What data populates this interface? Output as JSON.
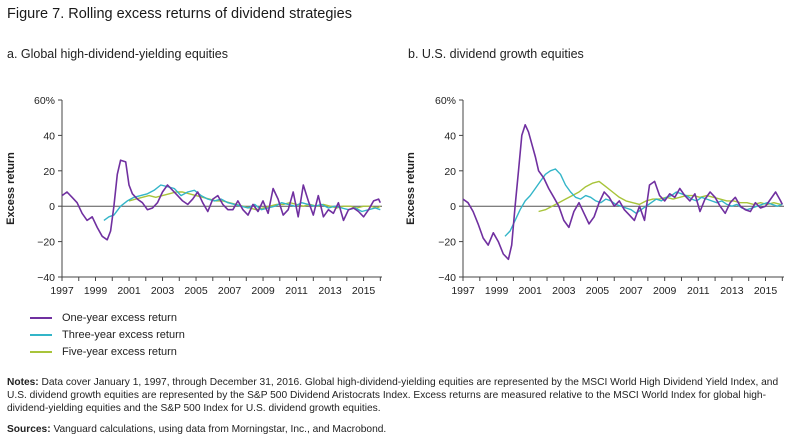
{
  "title": "Figure 7. Rolling excess returns of dividend strategies",
  "colors": {
    "one_year": "#7030a0",
    "three_year": "#33b5c8",
    "five_year": "#a8c43a",
    "zero_line": "#555555",
    "axis": "#444444"
  },
  "legend": [
    {
      "label": "One-year excess return",
      "color": "#7030a0"
    },
    {
      "label": "Three-year excess return",
      "color": "#33b5c8"
    },
    {
      "label": "Five-year excess return",
      "color": "#a8c43a"
    }
  ],
  "notes": {
    "label": "Notes:",
    "text": " Data cover January 1, 1997, through December 31, 2016. Global high-dividend-yielding equities are represented by the MSCI World High Dividend Yield Index, and U.S. dividend growth equities are represented by the S&P 500 Dividend Aristocrats Index. Excess returns are measured relative to the MSCI World Index for global high-dividend-yielding equities and the S&P 500 Index for U.S. dividend growth equities."
  },
  "sources": {
    "label": "Sources:",
    "text": " Vanguard calculations, using data from Morningstar, Inc., and Macrobond."
  },
  "chart_data": [
    {
      "type": "line",
      "title": "a. Global high-dividend-yielding equities",
      "xlabel": "",
      "ylabel": "Excess return",
      "xlim": [
        1997,
        2016.1
      ],
      "ylim": [
        -40,
        60
      ],
      "yticks": [
        "60%",
        "40",
        "20",
        "0",
        "−20",
        "−40"
      ],
      "ytick_values": [
        60,
        40,
        20,
        0,
        -20,
        -40
      ],
      "xticks": [
        "1997",
        "1999",
        "2001",
        "2003",
        "2005",
        "2007",
        "2009",
        "2011",
        "2013",
        "2015"
      ],
      "xtick_values": [
        1997,
        1999,
        2001,
        2003,
        2005,
        2007,
        2009,
        2011,
        2013,
        2015
      ],
      "series": [
        {
          "name": "One-year excess return",
          "key": "one_year",
          "x": [
            1997,
            1997.3,
            1997.6,
            1997.9,
            1998.2,
            1998.5,
            1998.8,
            1999.1,
            1999.4,
            1999.7,
            1999.9,
            2000.1,
            2000.3,
            2000.5,
            2000.8,
            2001.0,
            2001.2,
            2001.5,
            2001.8,
            2002.1,
            2002.4,
            2002.7,
            2003.0,
            2003.3,
            2003.6,
            2003.9,
            2004.2,
            2004.5,
            2004.8,
            2005.1,
            2005.4,
            2005.7,
            2006.0,
            2006.3,
            2006.6,
            2006.9,
            2007.2,
            2007.5,
            2007.8,
            2008.1,
            2008.4,
            2008.7,
            2009.0,
            2009.3,
            2009.6,
            2009.9,
            2010.2,
            2010.5,
            2010.8,
            2011.1,
            2011.4,
            2011.7,
            2012.0,
            2012.3,
            2012.6,
            2012.9,
            2013.2,
            2013.5,
            2013.8,
            2014.1,
            2014.4,
            2014.7,
            2015.0,
            2015.3,
            2015.6,
            2015.9,
            2016.0
          ],
          "values": [
            6,
            8,
            5,
            2,
            -4,
            -8,
            -6,
            -12,
            -17,
            -19,
            -14,
            0,
            18,
            26,
            25,
            12,
            7,
            4,
            2,
            -2,
            -1,
            2,
            8,
            12,
            9,
            6,
            3,
            1,
            4,
            8,
            2,
            -3,
            4,
            6,
            1,
            -2,
            -2,
            3,
            -2,
            -5,
            1,
            -3,
            3,
            -4,
            10,
            4,
            -5,
            -2,
            8,
            -6,
            12,
            3,
            -5,
            6,
            -6,
            -2,
            -4,
            2,
            -8,
            -2,
            -1,
            -3,
            -6,
            -2,
            3,
            4,
            2
          ]
        },
        {
          "name": "Three-year excess return",
          "key": "three_year",
          "x": [
            1999.5,
            1999.8,
            2000.1,
            2000.5,
            2000.9,
            2001.3,
            2001.7,
            2002.1,
            2002.5,
            2002.9,
            2003.3,
            2003.7,
            2004.1,
            2004.5,
            2004.9,
            2005.3,
            2005.7,
            2006.1,
            2006.5,
            2006.9,
            2007.3,
            2007.7,
            2008.1,
            2008.5,
            2008.9,
            2009.3,
            2009.7,
            2010.1,
            2010.5,
            2010.9,
            2011.3,
            2011.7,
            2012.1,
            2012.5,
            2012.9,
            2013.3,
            2013.7,
            2014.1,
            2014.5,
            2014.9,
            2015.3,
            2015.7,
            2016.0
          ],
          "values": [
            -8,
            -6,
            -5,
            0,
            3,
            5,
            6,
            7,
            9,
            12,
            11,
            10,
            6,
            8,
            9,
            6,
            4,
            3,
            4,
            2,
            1,
            0,
            -1,
            1,
            -2,
            -1,
            0,
            2,
            1,
            0,
            2,
            1,
            0,
            1,
            -1,
            0,
            -1,
            -2,
            -1,
            -3,
            -2,
            -1,
            -2
          ]
        },
        {
          "name": "Five-year excess return",
          "key": "five_year",
          "x": [
            2001.0,
            2001.4,
            2001.8,
            2002.2,
            2002.6,
            2003.0,
            2003.4,
            2003.8,
            2004.2,
            2004.6,
            2005.0,
            2005.4,
            2005.8,
            2006.2,
            2006.6,
            2007.0,
            2007.4,
            2007.8,
            2008.2,
            2008.6,
            2009.0,
            2009.4,
            2009.8,
            2010.2,
            2010.6,
            2011.0,
            2011.4,
            2011.8,
            2012.2,
            2012.6,
            2013.0,
            2013.4,
            2013.8,
            2014.2,
            2014.6,
            2015.0,
            2015.4,
            2015.8,
            2016.0
          ],
          "values": [
            3,
            4,
            5,
            6,
            5,
            6,
            7,
            8,
            8,
            7,
            6,
            5,
            4,
            3,
            3,
            2,
            1,
            0,
            -1,
            -2,
            -1,
            0,
            1,
            1,
            2,
            1,
            0,
            1,
            0,
            1,
            0,
            -1,
            0,
            0,
            -1,
            0,
            0,
            -1,
            0
          ]
        }
      ]
    },
    {
      "type": "line",
      "title": "b. U.S. dividend growth equities",
      "xlabel": "",
      "ylabel": "Excess return",
      "xlim": [
        1997,
        2016.1
      ],
      "ylim": [
        -40,
        60
      ],
      "yticks": [
        "60%",
        "40",
        "20",
        "0",
        "−20",
        "−40"
      ],
      "ytick_values": [
        60,
        40,
        20,
        0,
        -20,
        -40
      ],
      "xticks": [
        "1997",
        "1999",
        "2001",
        "2003",
        "2005",
        "2007",
        "2009",
        "2011",
        "2013",
        "2015"
      ],
      "xtick_values": [
        1997,
        1999,
        2001,
        2003,
        2005,
        2007,
        2009,
        2011,
        2013,
        2015
      ],
      "series": [
        {
          "name": "One-year excess return",
          "key": "one_year",
          "x": [
            1997,
            1997.3,
            1997.6,
            1997.9,
            1998.2,
            1998.5,
            1998.8,
            1999.1,
            1999.4,
            1999.7,
            1999.9,
            2000.1,
            2000.3,
            2000.5,
            2000.7,
            2000.9,
            2001.1,
            2001.3,
            2001.5,
            2001.8,
            2002.1,
            2002.4,
            2002.7,
            2003.0,
            2003.3,
            2003.6,
            2003.9,
            2004.2,
            2004.5,
            2004.8,
            2005.1,
            2005.4,
            2005.7,
            2006.0,
            2006.3,
            2006.6,
            2006.9,
            2007.2,
            2007.5,
            2007.8,
            2008.1,
            2008.4,
            2008.7,
            2009.0,
            2009.3,
            2009.6,
            2009.9,
            2010.2,
            2010.5,
            2010.8,
            2011.1,
            2011.4,
            2011.7,
            2012.0,
            2012.3,
            2012.6,
            2012.9,
            2013.2,
            2013.5,
            2013.8,
            2014.1,
            2014.4,
            2014.7,
            2015.0,
            2015.3,
            2015.6,
            2015.9,
            2016.0
          ],
          "values": [
            4,
            2,
            -3,
            -10,
            -18,
            -22,
            -15,
            -20,
            -27,
            -30,
            -22,
            0,
            20,
            40,
            46,
            42,
            35,
            28,
            20,
            16,
            10,
            5,
            0,
            -8,
            -12,
            -3,
            2,
            -4,
            -10,
            -6,
            2,
            8,
            5,
            0,
            3,
            -2,
            -5,
            -8,
            0,
            -8,
            12,
            14,
            6,
            3,
            7,
            5,
            10,
            6,
            3,
            7,
            -3,
            4,
            8,
            5,
            0,
            -4,
            2,
            5,
            0,
            -2,
            -3,
            2,
            -1,
            0,
            4,
            8,
            3,
            1
          ]
        },
        {
          "name": "Three-year excess return",
          "key": "three_year",
          "x": [
            1999.5,
            1999.8,
            2000.1,
            2000.4,
            2000.7,
            2001.0,
            2001.3,
            2001.6,
            2001.9,
            2002.2,
            2002.5,
            2002.8,
            2003.1,
            2003.4,
            2003.7,
            2004.0,
            2004.3,
            2004.6,
            2004.9,
            2005.2,
            2005.5,
            2005.8,
            2006.1,
            2006.4,
            2006.7,
            2007.0,
            2007.3,
            2007.6,
            2007.9,
            2008.2,
            2008.5,
            2008.8,
            2009.1,
            2009.4,
            2009.7,
            2010.0,
            2010.3,
            2010.6,
            2010.9,
            2011.2,
            2011.5,
            2011.8,
            2012.1,
            2012.4,
            2012.7,
            2013.0,
            2013.3,
            2013.6,
            2013.9,
            2014.2,
            2014.5,
            2014.8,
            2015.1,
            2015.4,
            2015.7,
            2016.0
          ],
          "values": [
            -17,
            -14,
            -8,
            -2,
            3,
            6,
            10,
            14,
            18,
            20,
            21,
            18,
            12,
            8,
            5,
            4,
            6,
            5,
            3,
            2,
            4,
            3,
            1,
            0,
            -1,
            -2,
            -4,
            -2,
            0,
            2,
            4,
            3,
            5,
            6,
            8,
            7,
            6,
            4,
            3,
            5,
            4,
            3,
            2,
            3,
            1,
            0,
            1,
            -1,
            -2,
            -1,
            0,
            1,
            2,
            1,
            0,
            1
          ]
        },
        {
          "name": "Five-year excess return",
          "key": "five_year",
          "x": [
            2001.5,
            2001.9,
            2002.3,
            2002.7,
            2003.1,
            2003.5,
            2003.9,
            2004.3,
            2004.7,
            2005.1,
            2005.5,
            2005.9,
            2006.3,
            2006.7,
            2007.1,
            2007.5,
            2007.9,
            2008.3,
            2008.7,
            2009.1,
            2009.5,
            2009.9,
            2010.3,
            2010.7,
            2011.1,
            2011.5,
            2011.9,
            2012.3,
            2012.7,
            2013.1,
            2013.5,
            2013.9,
            2014.3,
            2014.7,
            2015.1,
            2015.5,
            2015.9,
            2016.0
          ],
          "values": [
            -3,
            -2,
            0,
            2,
            4,
            6,
            8,
            11,
            13,
            14,
            11,
            8,
            5,
            3,
            2,
            1,
            3,
            4,
            4,
            5,
            4,
            5,
            6,
            6,
            5,
            6,
            5,
            4,
            3,
            3,
            2,
            2,
            1,
            2,
            1,
            2,
            1,
            1
          ]
        }
      ]
    }
  ]
}
